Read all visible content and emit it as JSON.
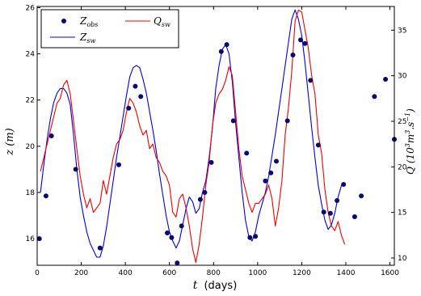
{
  "chart_data": {
    "type": "line",
    "xlabel_var": "t",
    "xlabel_unit": "(days)",
    "ylabel_left": "z (m)",
    "ylabel_right_base": "Q (10",
    "ylabel_right_sup1": "3",
    "ylabel_right_mid": "m",
    "ylabel_right_sup2": "3",
    "ylabel_right_mid2": ".s",
    "ylabel_right_sup3": "−1",
    "ylabel_right_end": ")",
    "xlim": [
      0,
      1620
    ],
    "ylim_left": [
      14.85,
      26.05
    ],
    "ylim_right": [
      9.2,
      37.6
    ],
    "x_ticks": [
      0,
      200,
      400,
      600,
      800,
      1000,
      1200,
      1400,
      1600
    ],
    "y_ticks_left": [
      16,
      18,
      20,
      22,
      24,
      26
    ],
    "y_ticks_right": [
      10,
      15,
      20,
      25,
      30,
      35
    ],
    "legend": {
      "placement": "top-left",
      "entries": [
        {
          "key": "zobs",
          "label": "Z",
          "sub": "obs"
        },
        {
          "key": "zsw",
          "label": "Z",
          "sub": "sw"
        },
        {
          "key": "qsw",
          "label": "Q",
          "sub": "sw"
        }
      ]
    },
    "series": [
      {
        "key": "zobs",
        "axis": "left",
        "style": "markers",
        "color": "#0a0a6e",
        "x": [
          10,
          40,
          65,
          175,
          285,
          370,
          415,
          445,
          470,
          590,
          610,
          635,
          655,
          740,
          760,
          790,
          835,
          860,
          890,
          950,
          965,
          990,
          1035,
          1060,
          1085,
          1135,
          1160,
          1195,
          1215,
          1240,
          1275,
          1300,
          1330,
          1360,
          1390,
          1440,
          1470,
          1530,
          1580,
          1620
        ],
        "y": [
          16.0,
          17.85,
          20.45,
          19.0,
          15.6,
          19.2,
          21.65,
          22.6,
          22.15,
          16.25,
          16.05,
          14.95,
          16.55,
          17.7,
          18.0,
          19.3,
          24.1,
          24.4,
          21.1,
          19.7,
          16.05,
          16.1,
          18.5,
          18.85,
          19.35,
          21.1,
          23.95,
          24.6,
          24.45,
          22.85,
          20.05,
          17.15,
          17.1,
          17.65,
          18.35,
          16.95,
          17.85,
          22.15,
          22.9,
          20.3
        ]
      },
      {
        "key": "zsw",
        "axis": "left",
        "style": "line",
        "color": "#0000dd",
        "x": [
          15,
          30,
          45,
          60,
          75,
          90,
          105,
          120,
          135,
          150,
          165,
          180,
          195,
          210,
          225,
          240,
          255,
          270,
          285,
          300,
          315,
          330,
          345,
          360,
          375,
          390,
          405,
          420,
          435,
          450,
          465,
          480,
          495,
          510,
          525,
          540,
          555,
          570,
          585,
          600,
          615,
          630,
          645,
          660,
          675,
          690,
          705,
          720,
          735,
          750,
          765,
          780,
          795,
          810,
          825,
          840,
          855,
          870,
          885,
          900,
          915,
          930,
          945,
          960,
          975,
          990,
          1005,
          1020,
          1035,
          1050,
          1065,
          1080,
          1095,
          1110,
          1125,
          1140,
          1155,
          1170,
          1185,
          1200,
          1215,
          1230,
          1245,
          1260,
          1275,
          1290,
          1305,
          1320,
          1335,
          1350,
          1365,
          1380,
          1395
        ],
        "y": [
          18.0,
          19.2,
          20.3,
          21.2,
          21.9,
          22.3,
          22.5,
          22.5,
          22.3,
          21.8,
          20.5,
          19.0,
          17.8,
          17.0,
          16.3,
          15.8,
          15.5,
          15.2,
          15.2,
          15.7,
          16.5,
          17.5,
          18.5,
          19.5,
          20.4,
          21.3,
          22.2,
          23.0,
          23.4,
          23.5,
          23.4,
          22.9,
          22.3,
          21.5,
          20.7,
          19.8,
          18.8,
          17.9,
          17.0,
          16.3,
          15.9,
          15.6,
          15.9,
          16.6,
          17.3,
          17.8,
          17.6,
          17.1,
          17.3,
          18.0,
          18.5,
          19.5,
          20.8,
          22.5,
          23.5,
          24.2,
          24.4,
          24.0,
          22.8,
          21.0,
          19.5,
          18.0,
          16.8,
          16.1,
          15.9,
          16.3,
          17.0,
          17.5,
          18.0,
          18.7,
          19.6,
          20.5,
          21.5,
          22.5,
          23.5,
          24.5,
          25.5,
          25.9,
          25.5,
          24.8,
          23.6,
          22.2,
          20.8,
          19.5,
          18.3,
          17.5,
          16.8,
          16.4,
          16.6,
          17.1,
          17.8,
          18.3,
          18.4
        ]
      },
      {
        "key": "qsw",
        "axis": "right",
        "style": "line",
        "color": "#ee0000",
        "x": [
          15,
          30,
          45,
          60,
          75,
          90,
          105,
          120,
          135,
          150,
          165,
          180,
          195,
          210,
          225,
          240,
          255,
          270,
          285,
          300,
          315,
          330,
          345,
          360,
          375,
          390,
          405,
          420,
          435,
          450,
          465,
          480,
          495,
          510,
          525,
          540,
          555,
          570,
          585,
          600,
          615,
          630,
          645,
          660,
          675,
          690,
          705,
          720,
          735,
          750,
          765,
          780,
          795,
          810,
          825,
          840,
          855,
          870,
          885,
          900,
          915,
          930,
          945,
          960,
          975,
          990,
          1005,
          1020,
          1035,
          1050,
          1065,
          1080,
          1095,
          1110,
          1125,
          1140,
          1155,
          1170,
          1185,
          1200,
          1215,
          1230,
          1245,
          1260,
          1275,
          1290,
          1305,
          1320,
          1335,
          1350,
          1365,
          1380,
          1395
        ],
        "y": [
          19.5,
          21.0,
          22.5,
          24.0,
          25.5,
          27.0,
          27.5,
          29.0,
          29.5,
          28.0,
          25.0,
          22.0,
          19.0,
          17.0,
          15.5,
          16.5,
          15.0,
          15.5,
          16.0,
          18.5,
          17.0,
          19.0,
          21.0,
          22.5,
          23.0,
          24.0,
          26.0,
          27.5,
          27.0,
          26.0,
          24.5,
          23.5,
          24.0,
          22.0,
          22.5,
          21.0,
          20.5,
          19.5,
          19.0,
          18.0,
          15.0,
          14.5,
          16.5,
          17.0,
          15.5,
          13.5,
          11.0,
          9.5,
          11.5,
          14.5,
          18.0,
          20.5,
          24.5,
          27.0,
          28.0,
          28.5,
          29.5,
          31.0,
          30.0,
          26.0,
          22.0,
          19.0,
          17.5,
          16.0,
          15.0,
          16.0,
          16.0,
          16.5,
          17.0,
          18.0,
          16.5,
          13.5,
          15.5,
          18.5,
          23.5,
          26.5,
          30.5,
          36.0,
          37.2,
          37.0,
          35.0,
          33.0,
          30.0,
          28.0,
          23.5,
          21.5,
          17.5,
          15.0,
          13.5,
          13.0,
          14.0,
          12.5,
          11.5
        ]
      }
    ]
  }
}
